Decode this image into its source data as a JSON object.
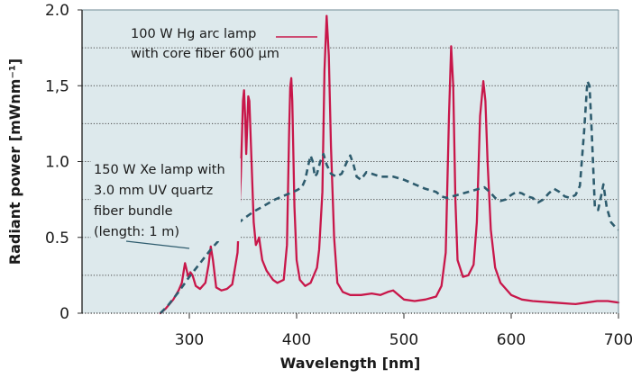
{
  "chart_data": {
    "type": "line",
    "title": "",
    "xlabel": "Wavelength [nm]",
    "ylabel": "Radiant power [mWnm⁻¹]",
    "xlim": [
      200,
      700
    ],
    "ylim": [
      0,
      2.0
    ],
    "x_ticks": [
      300,
      400,
      500,
      600,
      700
    ],
    "x_tick_labels": [
      "300",
      "400",
      "500",
      "600",
      "700"
    ],
    "y_ticks": [
      0,
      0.5,
      1.0,
      1.5,
      2.0
    ],
    "y_tick_labels": [
      "0",
      "0.5",
      "1.0",
      "1,5",
      "2.0"
    ],
    "gridlines_y": [
      0.25,
      0.5,
      0.75,
      1.0,
      1.25,
      1.5,
      1.75
    ],
    "grid": true,
    "background_color": "#dde9ec",
    "series": [
      {
        "name": "100 W Hg arc lamp with core fiber 600 µm",
        "name_lines": [
          "100 W Hg arc lamp",
          "with core fiber 600 µm"
        ],
        "style": "solid",
        "color": "#c8174a",
        "points": [
          [
            273,
            0.0
          ],
          [
            278,
            0.03
          ],
          [
            285,
            0.09
          ],
          [
            290,
            0.15
          ],
          [
            293,
            0.2
          ],
          [
            295,
            0.29
          ],
          [
            296,
            0.33
          ],
          [
            297,
            0.3
          ],
          [
            299,
            0.24
          ],
          [
            301,
            0.27
          ],
          [
            303,
            0.25
          ],
          [
            306,
            0.18
          ],
          [
            310,
            0.16
          ],
          [
            315,
            0.2
          ],
          [
            318,
            0.32
          ],
          [
            320,
            0.44
          ],
          [
            322,
            0.35
          ],
          [
            325,
            0.17
          ],
          [
            330,
            0.15
          ],
          [
            335,
            0.16
          ],
          [
            340,
            0.19
          ],
          [
            345,
            0.4
          ],
          [
            348,
            0.9
          ],
          [
            350,
            1.4
          ],
          [
            351,
            1.47
          ],
          [
            352,
            1.3
          ],
          [
            353,
            1.05
          ],
          [
            354,
            1.25
          ],
          [
            355,
            1.43
          ],
          [
            356,
            1.4
          ],
          [
            358,
            1.0
          ],
          [
            360,
            0.6
          ],
          [
            362,
            0.45
          ],
          [
            364,
            0.48
          ],
          [
            365,
            0.5
          ],
          [
            366,
            0.45
          ],
          [
            368,
            0.35
          ],
          [
            372,
            0.28
          ],
          [
            378,
            0.22
          ],
          [
            382,
            0.2
          ],
          [
            388,
            0.22
          ],
          [
            391,
            0.45
          ],
          [
            393,
            1.2
          ],
          [
            394,
            1.49
          ],
          [
            395,
            1.55
          ],
          [
            396,
            1.4
          ],
          [
            398,
            0.7
          ],
          [
            400,
            0.35
          ],
          [
            403,
            0.22
          ],
          [
            408,
            0.18
          ],
          [
            413,
            0.2
          ],
          [
            416,
            0.25
          ],
          [
            419,
            0.3
          ],
          [
            421,
            0.42
          ],
          [
            424,
            0.8
          ],
          [
            426,
            1.6
          ],
          [
            428,
            1.96
          ],
          [
            430,
            1.7
          ],
          [
            432,
            1.1
          ],
          [
            435,
            0.5
          ],
          [
            438,
            0.2
          ],
          [
            443,
            0.14
          ],
          [
            450,
            0.12
          ],
          [
            460,
            0.12
          ],
          [
            470,
            0.13
          ],
          [
            478,
            0.12
          ],
          [
            485,
            0.14
          ],
          [
            490,
            0.15
          ],
          [
            495,
            0.12
          ],
          [
            500,
            0.09
          ],
          [
            510,
            0.08
          ],
          [
            520,
            0.09
          ],
          [
            530,
            0.11
          ],
          [
            535,
            0.18
          ],
          [
            539,
            0.4
          ],
          [
            542,
            1.3
          ],
          [
            544,
            1.76
          ],
          [
            546,
            1.5
          ],
          [
            548,
            0.75
          ],
          [
            550,
            0.35
          ],
          [
            555,
            0.24
          ],
          [
            560,
            0.25
          ],
          [
            565,
            0.32
          ],
          [
            568,
            0.6
          ],
          [
            571,
            1.3
          ],
          [
            574,
            1.53
          ],
          [
            576,
            1.4
          ],
          [
            578,
            1.0
          ],
          [
            581,
            0.55
          ],
          [
            585,
            0.3
          ],
          [
            590,
            0.2
          ],
          [
            600,
            0.12
          ],
          [
            610,
            0.09
          ],
          [
            620,
            0.08
          ],
          [
            640,
            0.07
          ],
          [
            660,
            0.06
          ],
          [
            670,
            0.07
          ],
          [
            680,
            0.08
          ],
          [
            690,
            0.08
          ],
          [
            700,
            0.07
          ]
        ]
      },
      {
        "name": "150 W Xe lamp with 3.0 mm UV quartz fiber bundle (length: 1 m)",
        "name_lines": [
          "150 W Xe lamp with",
          "3.0 mm UV quartz",
          "fiber bundle",
          "(length: 1 m)"
        ],
        "style": "dashed",
        "color": "#2e5c6e",
        "points": [
          [
            273,
            0.0
          ],
          [
            280,
            0.05
          ],
          [
            290,
            0.14
          ],
          [
            300,
            0.24
          ],
          [
            310,
            0.33
          ],
          [
            320,
            0.42
          ],
          [
            330,
            0.5
          ],
          [
            340,
            0.56
          ],
          [
            350,
            0.62
          ],
          [
            360,
            0.67
          ],
          [
            370,
            0.71
          ],
          [
            380,
            0.75
          ],
          [
            390,
            0.78
          ],
          [
            400,
            0.81
          ],
          [
            405,
            0.83
          ],
          [
            408,
            0.88
          ],
          [
            411,
            0.98
          ],
          [
            413,
            1.04
          ],
          [
            415,
            1.0
          ],
          [
            417,
            0.9
          ],
          [
            419,
            0.92
          ],
          [
            422,
            1.0
          ],
          [
            425,
            1.05
          ],
          [
            428,
            0.98
          ],
          [
            432,
            0.92
          ],
          [
            437,
            0.9
          ],
          [
            442,
            0.92
          ],
          [
            447,
            1.0
          ],
          [
            450,
            1.04
          ],
          [
            453,
            0.98
          ],
          [
            456,
            0.9
          ],
          [
            460,
            0.88
          ],
          [
            465,
            0.93
          ],
          [
            470,
            0.92
          ],
          [
            478,
            0.9
          ],
          [
            490,
            0.9
          ],
          [
            500,
            0.88
          ],
          [
            510,
            0.85
          ],
          [
            520,
            0.82
          ],
          [
            530,
            0.8
          ],
          [
            535,
            0.77
          ],
          [
            540,
            0.76
          ],
          [
            550,
            0.78
          ],
          [
            560,
            0.8
          ],
          [
            570,
            0.82
          ],
          [
            575,
            0.83
          ],
          [
            580,
            0.8
          ],
          [
            585,
            0.76
          ],
          [
            590,
            0.74
          ],
          [
            595,
            0.75
          ],
          [
            600,
            0.78
          ],
          [
            605,
            0.8
          ],
          [
            610,
            0.79
          ],
          [
            615,
            0.77
          ],
          [
            620,
            0.76
          ],
          [
            625,
            0.73
          ],
          [
            630,
            0.75
          ],
          [
            635,
            0.79
          ],
          [
            640,
            0.82
          ],
          [
            645,
            0.8
          ],
          [
            650,
            0.77
          ],
          [
            655,
            0.76
          ],
          [
            660,
            0.78
          ],
          [
            664,
            0.84
          ],
          [
            668,
            1.2
          ],
          [
            671,
            1.53
          ],
          [
            673,
            1.5
          ],
          [
            675,
            1.2
          ],
          [
            678,
            0.7
          ],
          [
            681,
            0.68
          ],
          [
            684,
            0.78
          ],
          [
            686,
            0.85
          ],
          [
            689,
            0.7
          ],
          [
            693,
            0.6
          ],
          [
            698,
            0.56
          ],
          [
            700,
            0.55
          ]
        ]
      }
    ]
  }
}
